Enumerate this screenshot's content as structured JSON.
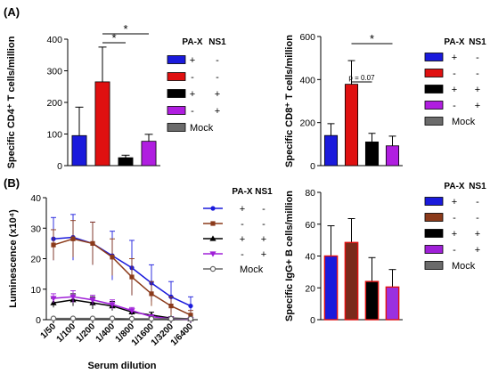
{
  "panel_labels": {
    "a": "(A)",
    "b": "(B)"
  },
  "legend_headers": {
    "pax": "PA-X",
    "ns1": "NS1"
  },
  "chart_data": [
    {
      "id": "cd4",
      "type": "bar",
      "ylabel": "Specific CD4⁺ T cells/million",
      "ylim": [
        0,
        400
      ],
      "yticks": [
        0,
        100,
        200,
        300,
        400
      ],
      "grid": false,
      "categories": [
        "PA-X+ NS1-",
        "PA-X- NS1-",
        "PA-X+ NS1+",
        "PA-X- NS1+"
      ],
      "values": [
        95,
        265,
        25,
        77
      ],
      "errors": [
        90,
        110,
        8,
        22
      ],
      "colors": [
        "#1a1adc",
        "#e01010",
        "#000000",
        "#b01ee0"
      ],
      "sig": [
        {
          "from": 1,
          "to": 2,
          "label": "*"
        },
        {
          "from": 1,
          "to": 3,
          "label": "*"
        }
      ],
      "legend": [
        {
          "color": "#1a1adc",
          "pax": "+",
          "ns1": "-"
        },
        {
          "color": "#e01010",
          "pax": "-",
          "ns1": "-"
        },
        {
          "color": "#000000",
          "pax": "+",
          "ns1": "+"
        },
        {
          "color": "#b01ee0",
          "pax": "-",
          "ns1": "+"
        },
        {
          "color": "#6b6b6b",
          "label": "Mock"
        }
      ]
    },
    {
      "id": "cd8",
      "type": "bar",
      "ylabel": "Specific CD8⁺ T cells/million",
      "ylim": [
        0,
        600
      ],
      "yticks": [
        0,
        200,
        400,
        600
      ],
      "grid": false,
      "categories": [
        "PA-X+ NS1-",
        "PA-X- NS1-",
        "PA-X+ NS1+",
        "PA-X- NS1+"
      ],
      "values": [
        140,
        378,
        110,
        92
      ],
      "errors": [
        55,
        110,
        40,
        45
      ],
      "colors": [
        "#1a1adc",
        "#e01010",
        "#000000",
        "#b01ee0"
      ],
      "sig": [
        {
          "from": 1,
          "to": 2,
          "label": "p = 0.07"
        },
        {
          "from": 1,
          "to": 3,
          "label": "*"
        }
      ],
      "legend": [
        {
          "color": "#1a1adc",
          "pax": "+",
          "ns1": "-"
        },
        {
          "color": "#e01010",
          "pax": "-",
          "ns1": "-"
        },
        {
          "color": "#000000",
          "pax": "+",
          "ns1": "+"
        },
        {
          "color": "#b01ee0",
          "pax": "-",
          "ns1": "+"
        },
        {
          "color": "#6b6b6b",
          "label": "Mock"
        }
      ]
    },
    {
      "id": "lum",
      "type": "line",
      "xlabel": "Serum dilution",
      "ylabel": "Luminescence (x10⁴)",
      "ylim": [
        0,
        40
      ],
      "yticks": [
        0,
        10,
        20,
        30,
        40
      ],
      "grid": false,
      "categories": [
        "1/50",
        "1/100",
        "1/200",
        "1/400",
        "1/800",
        "1/1600",
        "1/3200",
        "1/6400"
      ],
      "series": [
        {
          "color": "#1a1adc",
          "marker": "circle",
          "values": [
            26.5,
            27,
            25,
            21,
            17,
            12,
            7.5,
            4.5
          ],
          "errors": [
            7,
            7.5,
            7,
            8,
            9,
            6,
            5,
            3
          ]
        },
        {
          "color": "#8b3a1a",
          "marker": "square",
          "values": [
            24.5,
            26.5,
            25,
            20.5,
            14,
            8.5,
            4.5,
            1.5
          ],
          "errors": [
            5,
            6,
            7,
            6,
            6,
            4,
            3,
            1.5
          ]
        },
        {
          "color": "#000000",
          "marker": "triangle",
          "values": [
            5.5,
            6.5,
            5.5,
            4.5,
            2.5,
            1.5,
            0.5,
            0.3
          ],
          "errors": [
            1.5,
            2,
            2,
            1.5,
            1,
            1,
            0.5,
            0.3
          ]
        },
        {
          "color": "#a020d8",
          "marker": "triangle-down",
          "values": [
            7,
            7.5,
            6.5,
            5,
            3,
            1,
            0.3,
            0.1
          ],
          "errors": [
            1.5,
            2,
            1.5,
            1.5,
            1,
            0.5,
            0.3,
            0.1
          ]
        },
        {
          "color": "#666666",
          "marker": "open-circle",
          "values": [
            0.4,
            0.4,
            0.4,
            0.4,
            0.3,
            0.3,
            0.3,
            0.3
          ],
          "errors": [
            0.2,
            0.2,
            0.2,
            0.2,
            0.2,
            0.2,
            0.2,
            0.2
          ]
        }
      ],
      "legend": [
        {
          "color": "#1a1adc",
          "marker": "circle",
          "pax": "+",
          "ns1": "-"
        },
        {
          "color": "#8b3a1a",
          "marker": "square",
          "pax": "-",
          "ns1": "-"
        },
        {
          "color": "#000000",
          "marker": "triangle",
          "pax": "+",
          "ns1": "+"
        },
        {
          "color": "#a020d8",
          "marker": "triangle-down",
          "pax": "-",
          "ns1": "+"
        },
        {
          "color": "#666666",
          "marker": "open-circle",
          "label": "Mock"
        }
      ]
    },
    {
      "id": "igg",
      "type": "bar",
      "ylabel": "Specific IgG+ B cells/million",
      "ylim": [
        0,
        80
      ],
      "yticks": [
        0,
        20,
        40,
        60,
        80
      ],
      "grid": false,
      "categories": [
        "PA-X+ NS1-",
        "PA-X- NS1-",
        "PA-X+ NS1+",
        "PA-X- NS1+"
      ],
      "values": [
        40,
        48.5,
        24,
        20.5
      ],
      "errors": [
        19,
        15,
        15,
        11
      ],
      "colors": [
        "#1a1adc",
        "#7a2a1a",
        "#000000",
        "#9a30e0"
      ],
      "borders": [
        "#e01010",
        "#e01010",
        "#e01010",
        "#e01010"
      ],
      "sig": [],
      "legend": [
        {
          "color": "#1a1adc",
          "pax": "+",
          "ns1": "-"
        },
        {
          "color": "#8b3a1a",
          "pax": "-",
          "ns1": "-"
        },
        {
          "color": "#000000",
          "pax": "+",
          "ns1": "+"
        },
        {
          "color": "#a020d8",
          "pax": "-",
          "ns1": "+"
        },
        {
          "color": "#6b6b6b",
          "label": "Mock"
        }
      ]
    }
  ]
}
